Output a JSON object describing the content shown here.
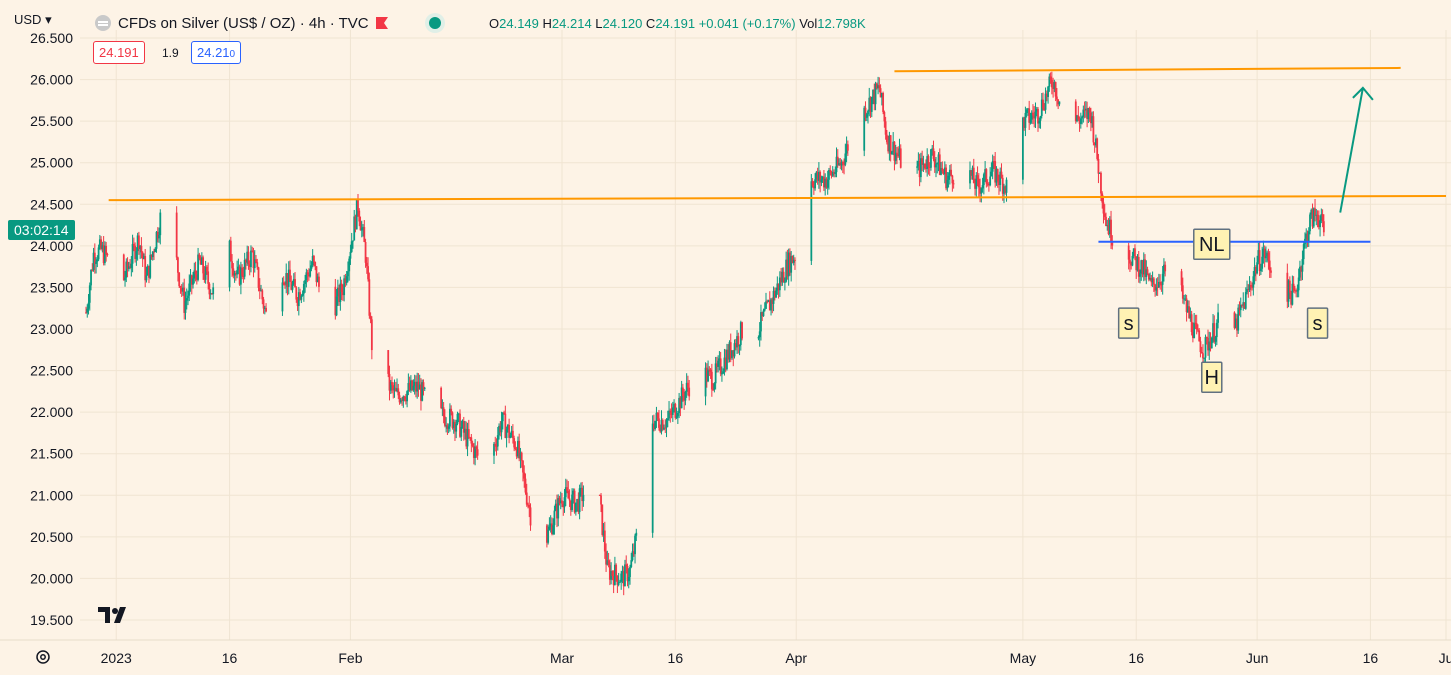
{
  "header": {
    "currency": "USD",
    "symbol": "CFDs on Silver (US$ / OZ) · 4h · TVC",
    "open_label": "O",
    "open": "24.149",
    "high_label": "H",
    "high": "24.214",
    "low_label": "L",
    "low": "24.120",
    "close_label": "C",
    "close": "24.191",
    "change": "+0.041 (+0.17%)",
    "vol_label": "Vol",
    "vol": "12.798K"
  },
  "trade": {
    "sell": "24.191",
    "spread": "1.9",
    "buy": "24.21",
    "buy_small": "0"
  },
  "countdown": "03:02:14",
  "colors": {
    "up": "#089981",
    "down": "#f23645",
    "orange": "#ff9800",
    "blue": "#2962ff",
    "teal": "#089981",
    "bg": "#fdf3e6"
  },
  "chart_data": {
    "type": "candlestick",
    "title": "CFDs on Silver (US$ / OZ) · 4h · TVC",
    "ylim": [
      19.5,
      26.5
    ],
    "yticks": [
      "26.500",
      "26.000",
      "25.500",
      "25.000",
      "24.500",
      "24.000",
      "23.500",
      "23.000",
      "22.500",
      "22.000",
      "21.500",
      "21.000",
      "20.500",
      "20.000",
      "19.500"
    ],
    "ytick_values": [
      26.5,
      26.0,
      25.5,
      25.0,
      24.5,
      24.0,
      23.5,
      23.0,
      22.5,
      22.0,
      21.5,
      21.0,
      20.5,
      20.0,
      19.5
    ],
    "xlim": [
      "2022-12-28",
      "2023-06-26"
    ],
    "xticks": [
      {
        "date": "2023-01-01",
        "label": "2023"
      },
      {
        "date": "2023-01-16",
        "label": "16"
      },
      {
        "date": "2023-02-01",
        "label": "Feb"
      },
      {
        "date": "2023-03-01",
        "label": "Mar"
      },
      {
        "date": "2023-03-16",
        "label": "16"
      },
      {
        "date": "2023-04-01",
        "label": "Apr"
      },
      {
        "date": "2023-05-01",
        "label": "May"
      },
      {
        "date": "2023-05-16",
        "label": "16"
      },
      {
        "date": "2023-06-01",
        "label": "Jun"
      },
      {
        "date": "2023-06-16",
        "label": "16"
      },
      {
        "date": "2023-06-26",
        "label": "Ju"
      }
    ],
    "price_path": [
      [
        "2022-12-28",
        23.2
      ],
      [
        "2022-12-29",
        23.9
      ],
      [
        "2022-12-30",
        23.95
      ],
      [
        "2023-01-02",
        23.6
      ],
      [
        "2023-01-04",
        24.1
      ],
      [
        "2023-01-05",
        23.6
      ],
      [
        "2023-01-07",
        24.4
      ],
      [
        "2023-01-09",
        23.8
      ],
      [
        "2023-01-10",
        23.3
      ],
      [
        "2023-01-12",
        23.8
      ],
      [
        "2023-01-14",
        23.4
      ],
      [
        "2023-01-15",
        24.3
      ],
      [
        "2023-01-17",
        23.6
      ],
      [
        "2023-01-19",
        23.9
      ],
      [
        "2023-01-21",
        23.1
      ],
      [
        "2023-01-23",
        23.7
      ],
      [
        "2023-01-25",
        23.4
      ],
      [
        "2023-01-27",
        23.8
      ],
      [
        "2023-01-29",
        23.1
      ],
      [
        "2023-01-31",
        23.5
      ],
      [
        "2023-02-02",
        24.5
      ],
      [
        "2023-02-03",
        23.9
      ],
      [
        "2023-02-04",
        22.6
      ],
      [
        "2023-02-07",
        22.2
      ],
      [
        "2023-02-10",
        22.3
      ],
      [
        "2023-02-12",
        22.0
      ],
      [
        "2023-02-15",
        21.9
      ],
      [
        "2023-02-17",
        21.6
      ],
      [
        "2023-02-19",
        21.3
      ],
      [
        "2023-02-21",
        21.9
      ],
      [
        "2023-02-23",
        21.6
      ],
      [
        "2023-02-25",
        20.7
      ],
      [
        "2023-02-27",
        20.5
      ],
      [
        "2023-03-01",
        21.0
      ],
      [
        "2023-03-03",
        20.9
      ],
      [
        "2023-03-05",
        21.2
      ],
      [
        "2023-03-06",
        20.9
      ],
      [
        "2023-03-07",
        20.1
      ],
      [
        "2023-03-09",
        20.0
      ],
      [
        "2023-03-10",
        20.1
      ],
      [
        "2023-03-12",
        21.0
      ],
      [
        "2023-03-13",
        21.9
      ],
      [
        "2023-03-15",
        21.9
      ],
      [
        "2023-03-17",
        22.2
      ],
      [
        "2023-03-19",
        22.5
      ],
      [
        "2023-03-21",
        22.4
      ],
      [
        "2023-03-23",
        22.7
      ],
      [
        "2023-03-25",
        23.0
      ],
      [
        "2023-03-27",
        23.0
      ],
      [
        "2023-03-29",
        23.4
      ],
      [
        "2023-03-31",
        23.8
      ],
      [
        "2023-04-02",
        24.0
      ],
      [
        "2023-04-03",
        24.8
      ],
      [
        "2023-04-05",
        24.8
      ],
      [
        "2023-04-07",
        25.0
      ],
      [
        "2023-04-09",
        25.5
      ],
      [
        "2023-04-12",
        25.9
      ],
      [
        "2023-04-13",
        25.3
      ],
      [
        "2023-04-15",
        25.0
      ],
      [
        "2023-04-17",
        24.9
      ],
      [
        "2023-04-19",
        25.1
      ],
      [
        "2023-04-21",
        24.8
      ],
      [
        "2023-04-23",
        25.0
      ],
      [
        "2023-04-25",
        24.7
      ],
      [
        "2023-04-27",
        24.9
      ],
      [
        "2023-04-29",
        24.7
      ],
      [
        "2023-05-01",
        25.5
      ],
      [
        "2023-05-03",
        25.6
      ],
      [
        "2023-05-05",
        26.0
      ],
      [
        "2023-05-06",
        25.7
      ],
      [
        "2023-05-08",
        25.5
      ],
      [
        "2023-05-10",
        25.6
      ],
      [
        "2023-05-12",
        24.3
      ],
      [
        "2023-05-13",
        24.1
      ],
      [
        "2023-05-15",
        23.9
      ],
      [
        "2023-05-17",
        23.7
      ],
      [
        "2023-05-18",
        23.5
      ],
      [
        "2023-05-20",
        23.7
      ],
      [
        "2023-05-22",
        23.4
      ],
      [
        "2023-05-24",
        22.9
      ],
      [
        "2023-05-25",
        22.75
      ],
      [
        "2023-05-27",
        23.1
      ],
      [
        "2023-05-29",
        23.0
      ],
      [
        "2023-05-31",
        23.5
      ],
      [
        "2023-06-01",
        23.8
      ],
      [
        "2023-06-02",
        23.9
      ],
      [
        "2023-06-04",
        23.5
      ],
      [
        "2023-06-06",
        23.4
      ],
      [
        "2023-06-07",
        23.9
      ],
      [
        "2023-06-08",
        24.3
      ],
      [
        "2023-06-09",
        24.4
      ],
      [
        "2023-06-10",
        24.1
      ],
      [
        "2023-06-11",
        24.19
      ]
    ],
    "annotations": [
      {
        "type": "hline",
        "color": "#ff9800",
        "from": "2022-12-31",
        "to": "2023-06-26",
        "y1": 24.55,
        "y2": 24.6
      },
      {
        "type": "hline",
        "color": "#ff9800",
        "from": "2023-04-14",
        "to": "2023-06-20",
        "y1": 26.1,
        "y2": 26.14
      },
      {
        "type": "hline",
        "color": "#2962ff",
        "from": "2023-05-11",
        "to": "2023-06-16",
        "y1": 24.05,
        "y2": 24.05
      },
      {
        "type": "arrow",
        "color": "#089981",
        "from": [
          "2023-06-12",
          24.4
        ],
        "to": [
          "2023-06-15",
          25.9
        ]
      },
      {
        "type": "label",
        "text": "NL",
        "date": "2023-05-26",
        "y": 24.02
      },
      {
        "type": "label",
        "text": "s",
        "date": "2023-05-15",
        "y": 23.07
      },
      {
        "type": "label",
        "text": "H",
        "date": "2023-05-26",
        "y": 22.42
      },
      {
        "type": "label",
        "text": "s",
        "date": "2023-06-09",
        "y": 23.07
      }
    ]
  }
}
